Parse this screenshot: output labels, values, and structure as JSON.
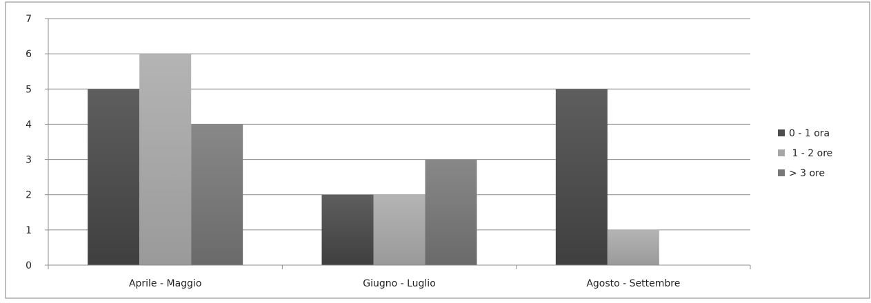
{
  "chart_data": {
    "type": "bar",
    "categories": [
      "Aprile - Maggio",
      "Giugno - Luglio",
      "Agosto - Settembre"
    ],
    "series": [
      {
        "name": "0 - 1 ora",
        "values": [
          5,
          2,
          5
        ],
        "color": "#4d4d4d"
      },
      {
        "name": " 1 - 2 ore",
        "values": [
          6,
          2,
          1
        ],
        "color": "#a6a6a6"
      },
      {
        "name": "> 3 ore",
        "values": [
          4,
          3,
          0
        ],
        "color": "#787878"
      }
    ],
    "y_ticks": [
      "0",
      "1",
      "2",
      "3",
      "4",
      "5",
      "6",
      "7"
    ],
    "ylim": [
      0,
      7
    ],
    "grid": true,
    "legend_position": "right",
    "title": "",
    "xlabel": "",
    "ylabel": ""
  }
}
